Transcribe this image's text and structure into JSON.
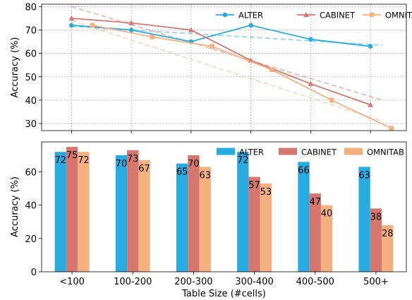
{
  "colors": {
    "alter": "#29ABE2",
    "cabinet": "#D5776F",
    "omnitab": "#F5B07F"
  },
  "chart_data": [
    {
      "type": "line",
      "ylabel": "Accuracy (%)",
      "ylim": [
        27,
        81
      ],
      "yticks": [
        30,
        40,
        50,
        60,
        70,
        80
      ],
      "grid": true,
      "legend": "top-right",
      "series": [
        {
          "name": "ALTER",
          "key": "alter",
          "marker": "circle",
          "x": [
            1,
            2,
            3,
            4,
            5,
            6
          ],
          "values": [
            72,
            70,
            65,
            72,
            66,
            63
          ],
          "trend": [
            71.5,
            63.5
          ]
        },
        {
          "name": "CABINET",
          "key": "cabinet",
          "marker": "triangle",
          "x": [
            1,
            2,
            3,
            4,
            5,
            6
          ],
          "values": [
            75,
            73,
            70,
            57,
            47,
            38
          ],
          "trend": [
            80,
            40
          ]
        },
        {
          "name": "OMNITAB",
          "key": "omnitab",
          "marker": "square",
          "x": [
            1.35,
            2.35,
            3.35,
            4.35,
            5.35,
            6.35
          ],
          "values": [
            72,
            67,
            63,
            53,
            40,
            28
          ],
          "trend": [
            74,
            31
          ]
        }
      ]
    },
    {
      "type": "bar",
      "xlabel": "Table Size (#cells)",
      "ylabel": "Accuracy (%)",
      "ylim": [
        0,
        78
      ],
      "yticks": [
        0,
        20,
        40,
        60
      ],
      "categories": [
        "<100",
        "100-200",
        "200-300",
        "300-400",
        "400-500",
        "500+"
      ],
      "legend": "top-right",
      "series": [
        {
          "name": "ALTER",
          "key": "alter",
          "values": [
            72,
            70,
            65,
            72,
            66,
            63
          ]
        },
        {
          "name": "CABINET",
          "key": "cabinet",
          "values": [
            75,
            73,
            70,
            57,
            47,
            38
          ]
        },
        {
          "name": "OMNITAB",
          "key": "omnitab",
          "values": [
            72,
            67,
            63,
            53,
            40,
            28
          ]
        }
      ]
    }
  ]
}
